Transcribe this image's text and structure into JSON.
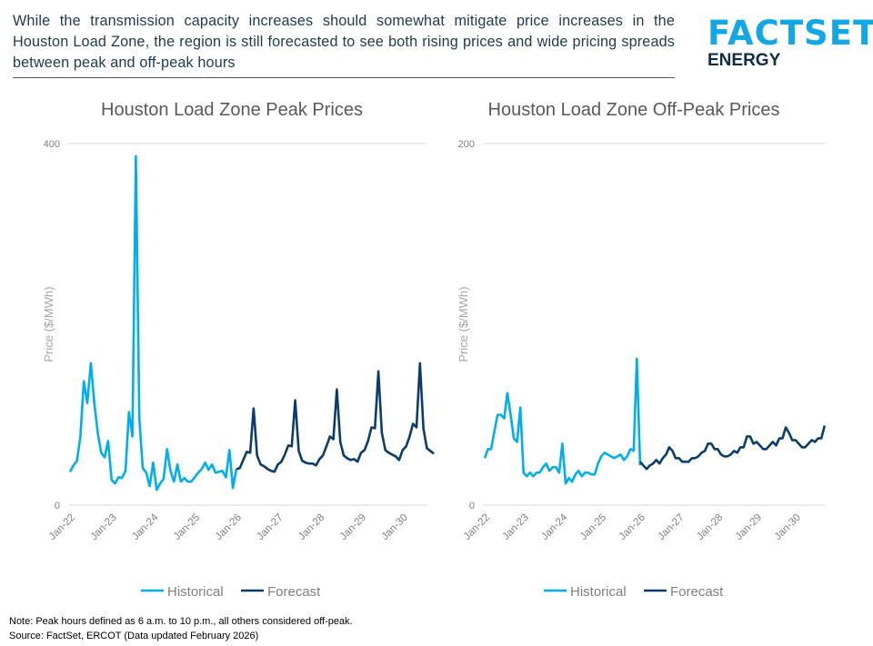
{
  "header": {
    "headline": "While the transmission capacity increases should somewhat mitigate price increases in the Houston Load Zone, the region is still forecasted to see both rising prices and wide pricing spreads between peak and off-peak hours",
    "logo": {
      "brand": "FACTSET",
      "sub": "ENERGY",
      "brand_color": "#12a8e8",
      "sub_color": "#0f2d45"
    }
  },
  "footer": {
    "note": "Note: Peak hours defined as 6 a.m. to 10 p.m., all others considered off-peak.",
    "source": "Source: FactSet, ERCOT (Data updated February 2026)"
  },
  "colors": {
    "historical": "#00aeef",
    "forecast": "#0a3d6b",
    "grid": "#d9d9d9",
    "text": "#7f7f7f"
  },
  "chart_data": [
    {
      "type": "line",
      "title": "Houston Load Zone Peak Prices",
      "ylabel": "Price ($/MWh)",
      "xlabel": "",
      "ylim": [
        0,
        400
      ],
      "yticks": [
        "0",
        "400"
      ],
      "x_start": "Jan-22",
      "x_frequency": "monthly",
      "xticks": [
        "Jan-22",
        "Jan-23",
        "Jan-24",
        "Jan-25",
        "Jan-26",
        "Jan-27",
        "Jan-28",
        "Jan-29",
        "Jan-30"
      ],
      "grid": "horizontal",
      "legend": "bottom",
      "series": [
        {
          "name": "Historical",
          "start_month": "Jan-22",
          "values": [
            37,
            44,
            49,
            76,
            137,
            113,
            157,
            113,
            80,
            58,
            53,
            71,
            28,
            24,
            31,
            30,
            38,
            103,
            76,
            386,
            96,
            41,
            36,
            21,
            47,
            17,
            24,
            29,
            62,
            38,
            26,
            45,
            26,
            30,
            26,
            26,
            31,
            36,
            40,
            47,
            39,
            45,
            36,
            37,
            38,
            31,
            61,
            19,
            40
          ]
        },
        {
          "name": "Forecast",
          "start_month": "Jan-26",
          "values": [
            40,
            41,
            50,
            59,
            58,
            107,
            55,
            45,
            43,
            40,
            38,
            37,
            45,
            48,
            56,
            66,
            65,
            116,
            60,
            49,
            47,
            46,
            46,
            44,
            51,
            55,
            65,
            76,
            73,
            128,
            70,
            55,
            52,
            50,
            51,
            48,
            58,
            61,
            71,
            86,
            85,
            148,
            80,
            61,
            58,
            56,
            54,
            50,
            61,
            65,
            76,
            90,
            86,
            157,
            85,
            63,
            60,
            57
          ]
        }
      ]
    },
    {
      "type": "line",
      "title": "Houston Load Zone Off-Peak Prices",
      "ylabel": "Price ($/MWh)",
      "xlabel": "",
      "ylim": [
        0,
        200
      ],
      "yticks": [
        "0",
        "200"
      ],
      "x_start": "Jan-22",
      "x_frequency": "monthly",
      "xticks": [
        "Jan-22",
        "Jan-23",
        "Jan-24",
        "Jan-25",
        "Jan-26",
        "Jan-27",
        "Jan-28",
        "Jan-29",
        "Jan-30"
      ],
      "grid": "horizontal",
      "legend": "bottom",
      "series": [
        {
          "name": "Historical",
          "start_month": "Jan-22",
          "values": [
            26,
            31,
            31,
            41,
            50,
            50,
            48,
            62,
            50,
            37,
            35,
            54,
            18,
            16,
            18,
            16,
            18,
            18,
            21,
            23,
            19,
            21,
            21,
            18,
            34,
            12,
            15,
            13,
            17,
            19,
            16,
            18,
            18,
            17,
            17,
            23,
            27,
            29,
            28,
            27,
            26,
            27,
            28,
            25,
            27,
            31,
            30,
            81,
            22
          ]
        },
        {
          "name": "Forecast",
          "start_month": "Jan-26",
          "values": [
            24,
            22,
            20,
            22,
            23,
            25,
            23,
            26,
            28,
            32,
            30,
            26,
            26,
            24,
            24,
            24,
            26,
            26,
            27,
            29,
            30,
            34,
            34,
            31,
            31,
            28,
            27,
            27,
            28,
            30,
            29,
            32,
            32,
            38,
            38,
            34,
            35,
            33,
            31,
            31,
            33,
            35,
            33,
            37,
            37,
            43,
            40,
            36,
            36,
            34,
            32,
            32,
            34,
            36,
            35,
            37,
            37,
            44
          ]
        }
      ]
    }
  ]
}
